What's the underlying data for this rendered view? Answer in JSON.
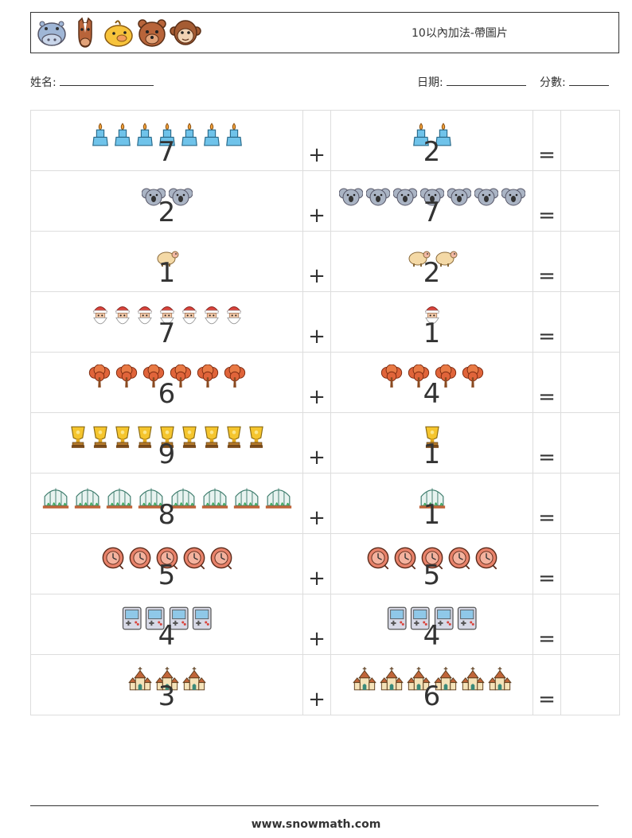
{
  "header": {
    "title": "10以內加法-帶圖片",
    "animals": [
      "hippo-icon",
      "horse-icon",
      "chick-icon",
      "bear-icon",
      "monkey-icon"
    ]
  },
  "meta": {
    "name_label": "姓名:",
    "date_label": "日期:",
    "score_label": "分數:"
  },
  "operators": {
    "plus": "+",
    "equals": "="
  },
  "rows": [
    {
      "icon": "candle-icon",
      "left": 7,
      "right": 2
    },
    {
      "icon": "koala-icon",
      "left": 2,
      "right": 7
    },
    {
      "icon": "sheep-icon",
      "left": 1,
      "right": 2
    },
    {
      "icon": "santa-icon",
      "left": 7,
      "right": 1
    },
    {
      "icon": "autumn-tree-icon",
      "left": 6,
      "right": 4
    },
    {
      "icon": "trophy-icon",
      "left": 9,
      "right": 1
    },
    {
      "icon": "greenhouse-icon",
      "left": 8,
      "right": 1
    },
    {
      "icon": "clock-icon",
      "left": 5,
      "right": 5
    },
    {
      "icon": "game-console-icon",
      "left": 4,
      "right": 4
    },
    {
      "icon": "church-icon",
      "left": 3,
      "right": 6
    }
  ],
  "footer": {
    "url": "www.snowmath.com"
  }
}
